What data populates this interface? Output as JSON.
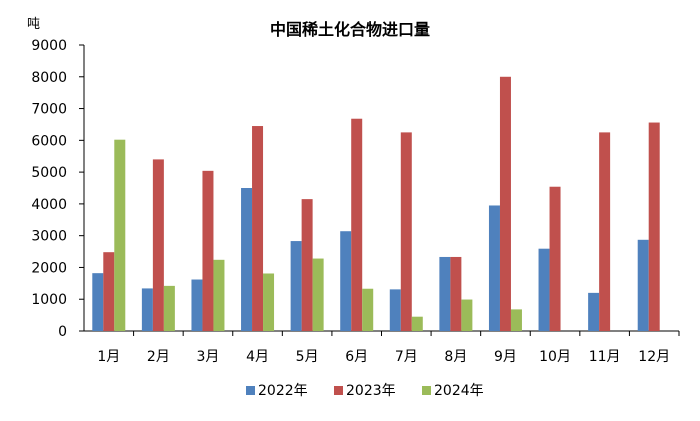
{
  "chart_data": {
    "type": "bar",
    "title": "中国稀土化合物进口量",
    "unit_label": "吨",
    "categories": [
      "1月",
      "2月",
      "3月",
      "4月",
      "5月",
      "6月",
      "7月",
      "8月",
      "9月",
      "10月",
      "11月",
      "12月"
    ],
    "ylim": [
      0,
      9000
    ],
    "yticks": [
      0,
      1000,
      2000,
      3000,
      4000,
      5000,
      6000,
      7000,
      8000,
      9000
    ],
    "grid": false,
    "legend_position": "bottom",
    "series": [
      {
        "name": "2022年",
        "color": "#4F81BD",
        "values": [
          1820,
          1340,
          1620,
          4500,
          2830,
          3140,
          1310,
          2330,
          3950,
          2590,
          1200,
          2870
        ]
      },
      {
        "name": "2023年",
        "color": "#C0504D",
        "values": [
          2480,
          5400,
          5040,
          6450,
          4150,
          6680,
          6250,
          2330,
          8000,
          4540,
          6250,
          6560
        ]
      },
      {
        "name": "2024年",
        "color": "#9BBB59",
        "values": [
          6020,
          1420,
          2240,
          1810,
          2280,
          1330,
          450,
          990,
          680,
          null,
          null,
          null
        ]
      }
    ]
  }
}
